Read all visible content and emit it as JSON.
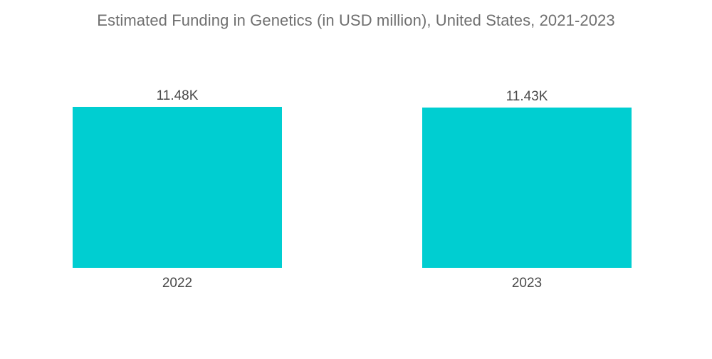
{
  "chart_data": {
    "type": "bar",
    "title": "Estimated Funding in Genetics (in USD million), United States, 2021-2023",
    "categories": [
      "2022",
      "2023"
    ],
    "values": [
      11480,
      11430
    ],
    "value_labels": [
      "11.48K",
      "11.43K"
    ],
    "xlabel": "",
    "ylabel": "",
    "ylim": [
      0,
      11480
    ],
    "grid": false,
    "legend": "none",
    "bar_color": "#00ced1"
  }
}
